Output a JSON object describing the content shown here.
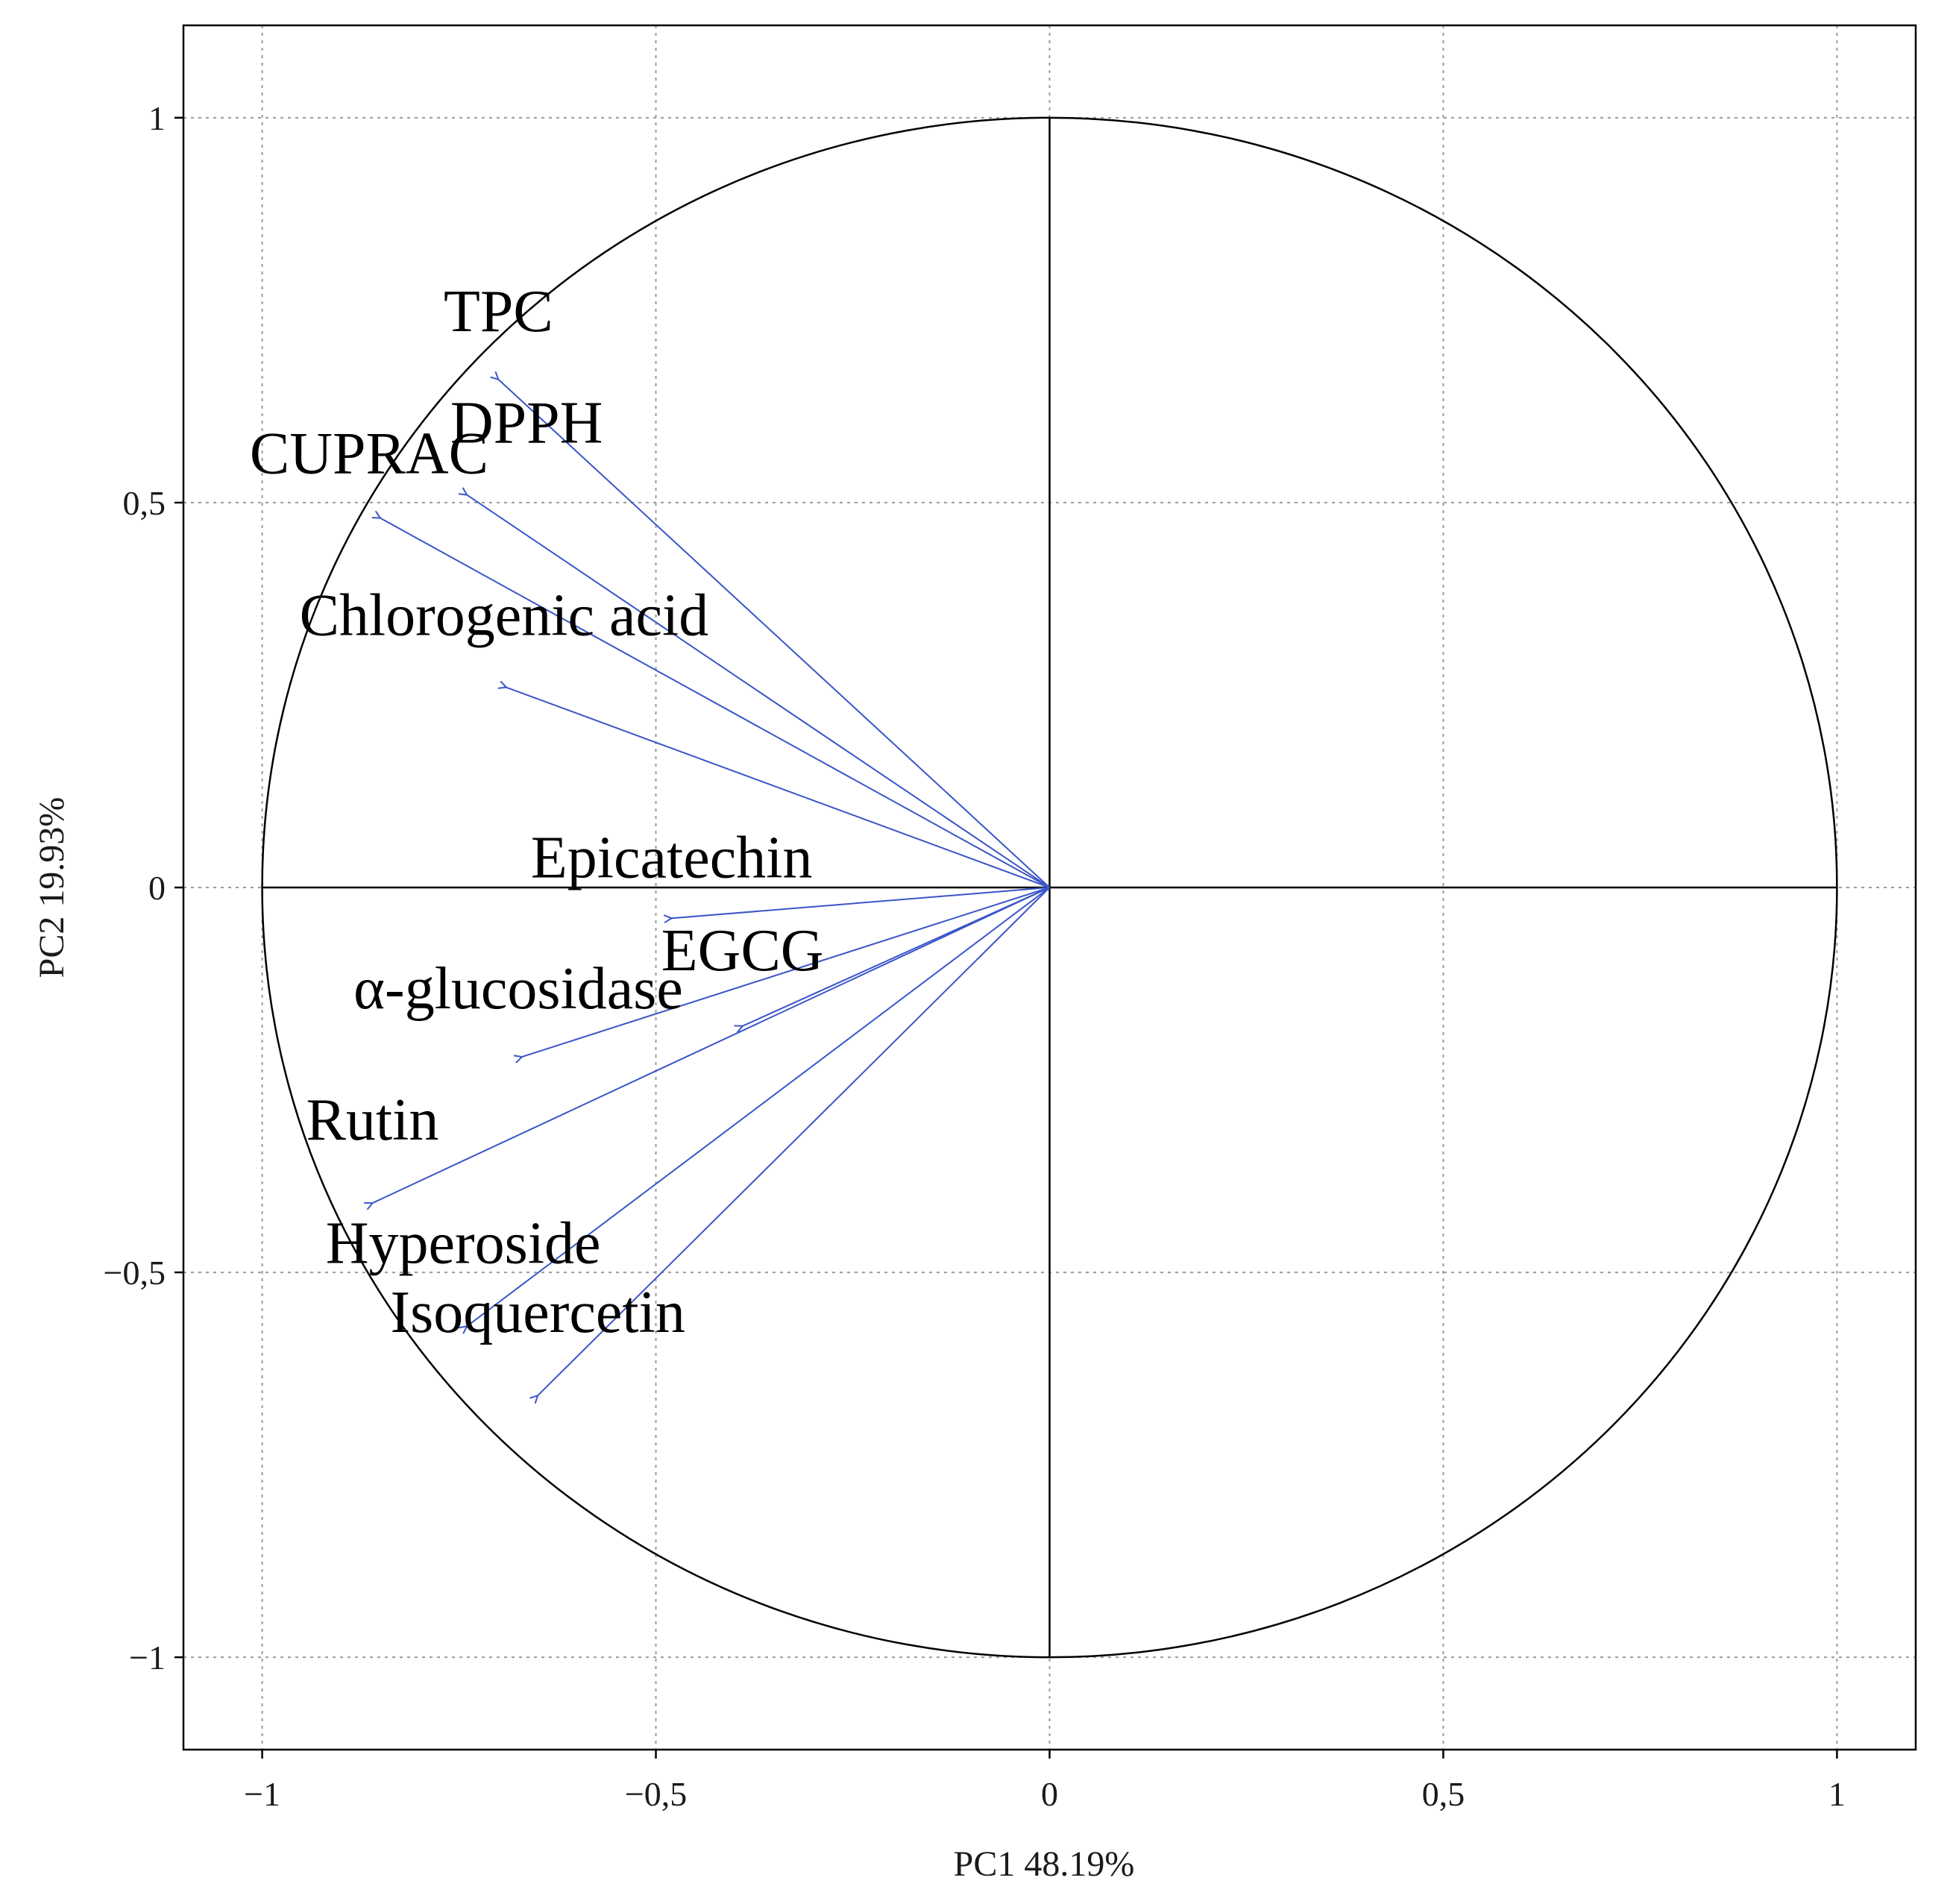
{
  "chart_data": {
    "type": "scatter",
    "subtype": "pca-correlation-circle",
    "xlabel": "PC1 48.19%",
    "ylabel": "PC2 19.93%",
    "xlim": [
      -1.1,
      1.1
    ],
    "ylim": [
      -1.12,
      1.12
    ],
    "x_ticks": [
      -1,
      -0.5,
      0,
      0.5,
      1
    ],
    "x_tick_labels": [
      "−1",
      "−0,5",
      "0",
      "0,5",
      "1"
    ],
    "y_ticks": [
      -1,
      -0.5,
      0,
      0.5,
      1
    ],
    "y_tick_labels": [
      "−1",
      "−0,5",
      "0",
      "0,5",
      "1"
    ],
    "grid": true,
    "arrow_color": "#3a55c8",
    "variables": [
      {
        "name": "TPC",
        "x": -0.7,
        "y": 0.66
      },
      {
        "name": "DPPH",
        "x": -0.74,
        "y": 0.51
      },
      {
        "name": "CUPRAC",
        "x": -0.85,
        "y": 0.48
      },
      {
        "name": "Chlorogenic acid",
        "x": -0.69,
        "y": 0.26
      },
      {
        "name": "Epicatechin",
        "x": -0.48,
        "y": -0.04
      },
      {
        "name": "EGCG",
        "x": -0.39,
        "y": -0.18
      },
      {
        "name": "α-glucosidase",
        "x": -0.67,
        "y": -0.22
      },
      {
        "name": "Rutin",
        "x": -0.86,
        "y": -0.41
      },
      {
        "name": "Hyperoside",
        "x": -0.74,
        "y": -0.57
      },
      {
        "name": "Isoquercetin",
        "x": -0.65,
        "y": -0.66
      }
    ]
  }
}
